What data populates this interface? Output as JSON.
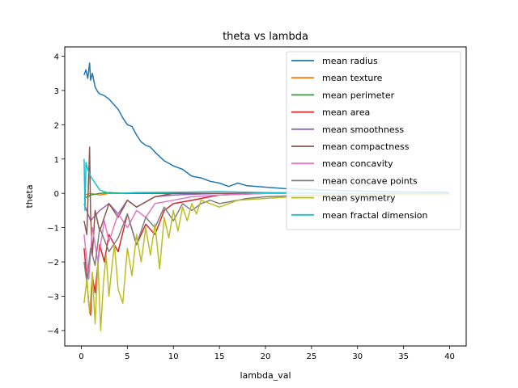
{
  "chart_data": {
    "type": "line",
    "title": "theta vs lambda",
    "xlabel": "lambda_val",
    "ylabel": "theta",
    "xlim": [
      -1.8,
      41.8
    ],
    "ylim": [
      -4.45,
      4.27
    ],
    "xticks": [
      0,
      5,
      10,
      15,
      20,
      25,
      30,
      35,
      40
    ],
    "yticks": [
      -4,
      -3,
      -2,
      -1,
      0,
      1,
      2,
      3,
      4
    ],
    "grid": false,
    "legend_position": "upper right",
    "series": [
      {
        "name": "mean radius",
        "color": "#1f77b4",
        "x": [
          0.3,
          0.5,
          0.7,
          0.9,
          1.0,
          1.2,
          1.5,
          1.8,
          2.0,
          2.5,
          3.0,
          3.5,
          4.0,
          4.5,
          5.0,
          5.5,
          6.0,
          6.5,
          7.0,
          7.5,
          8.0,
          9.0,
          10.0,
          11.0,
          12.0,
          13.0,
          14.0,
          15.0,
          16.0,
          17.0,
          18.0,
          20.0,
          22.0,
          24.0,
          26.0,
          28.0,
          30.0,
          33.0,
          36.0,
          40.0
        ],
        "y": [
          3.45,
          3.6,
          3.35,
          3.8,
          3.3,
          3.5,
          3.1,
          2.95,
          2.9,
          2.85,
          2.75,
          2.6,
          2.45,
          2.2,
          2.0,
          1.95,
          1.7,
          1.5,
          1.4,
          1.35,
          1.2,
          0.95,
          0.8,
          0.7,
          0.5,
          0.45,
          0.35,
          0.3,
          0.2,
          0.3,
          0.22,
          0.18,
          0.14,
          0.12,
          0.1,
          0.08,
          0.07,
          0.05,
          0.04,
          0.03
        ]
      },
      {
        "name": "mean texture",
        "color": "#ff7f0e",
        "x": [
          0.3,
          1.0,
          2.0,
          3.0,
          5.0,
          8.0,
          12.0,
          20.0,
          40.0
        ],
        "y": [
          -0.05,
          0.0,
          -0.05,
          0.0,
          0.0,
          0.0,
          0.0,
          0.0,
          0.0
        ]
      },
      {
        "name": "mean perimeter",
        "color": "#2ca02c",
        "x": [
          0.3,
          1.0,
          2.0,
          3.0,
          5.0,
          8.0,
          12.0,
          20.0,
          40.0
        ],
        "y": [
          -0.15,
          -0.05,
          0.0,
          0.02,
          0.0,
          0.0,
          0.0,
          0.0,
          0.0
        ]
      },
      {
        "name": "mean area",
        "color": "#d62728",
        "x": [
          0.3,
          0.5,
          0.8,
          1.0,
          1.2,
          1.5,
          2.0,
          2.5,
          3.0,
          4.0,
          5.0,
          6.0,
          7.0,
          8.0,
          9.0,
          10.0,
          12.0,
          15.0,
          20.0,
          25.0,
          30.0,
          40.0
        ],
        "y": [
          -1.6,
          -2.2,
          -3.2,
          -3.55,
          -2.4,
          -2.9,
          -1.5,
          -2.0,
          -1.2,
          -1.7,
          -0.6,
          -1.5,
          -0.9,
          -1.2,
          -0.5,
          -0.3,
          -0.2,
          -0.05,
          0.0,
          0.0,
          0.0,
          0.0
        ]
      },
      {
        "name": "mean smoothness",
        "color": "#9467bd",
        "x": [
          0.3,
          1.0,
          2.0,
          3.0,
          4.0,
          5.0,
          6.0,
          8.0,
          10.0,
          15.0,
          20.0,
          40.0
        ],
        "y": [
          -0.3,
          -0.8,
          -0.5,
          -0.3,
          -0.6,
          -0.2,
          -0.4,
          -0.1,
          -0.05,
          0.0,
          0.0,
          0.0
        ]
      },
      {
        "name": "mean compactness",
        "color": "#8c564b",
        "x": [
          0.3,
          0.6,
          0.9,
          1.0,
          1.2,
          1.5,
          2.0,
          3.0,
          4.0,
          5.0,
          6.0,
          8.0,
          10.0,
          15.0,
          20.0,
          40.0
        ],
        "y": [
          -0.8,
          -1.2,
          1.35,
          -0.6,
          -1.8,
          -0.5,
          -1.1,
          -0.3,
          -0.7,
          -0.2,
          -0.4,
          -0.1,
          0.0,
          0.0,
          0.0,
          0.0
        ]
      },
      {
        "name": "mean concavity",
        "color": "#e377c2",
        "x": [
          0.3,
          0.8,
          1.2,
          1.8,
          2.5,
          3.0,
          4.0,
          5.0,
          6.0,
          7.0,
          8.0,
          10.0,
          12.0,
          15.0,
          20.0,
          30.0,
          40.0
        ],
        "y": [
          -1.2,
          -2.5,
          -1.0,
          -2.0,
          -0.8,
          -1.4,
          -0.6,
          -1.0,
          -0.5,
          -0.7,
          -0.3,
          -0.2,
          -0.1,
          -0.05,
          0.0,
          0.0,
          0.0
        ]
      },
      {
        "name": "mean concave points",
        "color": "#7f7f7f",
        "x": [
          0.3,
          0.6,
          1.0,
          1.5,
          2.0,
          3.0,
          4.0,
          5.0,
          6.0,
          7.0,
          8.0,
          9.0,
          10.0,
          11.0,
          12.0,
          13.0,
          14.0,
          15.0,
          18.0,
          20.0,
          25.0,
          30.0,
          35.0,
          40.0
        ],
        "y": [
          -2.0,
          -2.6,
          -1.6,
          -2.1,
          -1.0,
          -1.7,
          -1.3,
          -0.6,
          -1.5,
          -0.7,
          -1.0,
          -0.4,
          -0.8,
          -0.3,
          -0.5,
          -0.3,
          -0.2,
          -0.3,
          -0.15,
          -0.1,
          -0.05,
          -0.05,
          0.0,
          -0.02
        ]
      },
      {
        "name": "mean symmetry",
        "color": "#bcbd22",
        "x": [
          0.3,
          0.6,
          0.9,
          1.2,
          1.5,
          1.8,
          2.1,
          2.4,
          2.7,
          3.0,
          3.3,
          3.6,
          4.0,
          4.5,
          5.0,
          5.5,
          6.0,
          6.5,
          7.0,
          7.5,
          8.0,
          8.5,
          9.0,
          9.5,
          10.0,
          10.5,
          11.0,
          11.5,
          12.0,
          12.5,
          13.0,
          14.0,
          15.0,
          17.0,
          20.0,
          23.0,
          26.0,
          30.0,
          35.0,
          40.0
        ],
        "y": [
          -3.2,
          -2.5,
          -3.5,
          -2.3,
          -3.8,
          -2.0,
          -4.0,
          -2.6,
          -1.8,
          -3.0,
          -2.2,
          -1.5,
          -2.8,
          -3.2,
          -1.6,
          -2.4,
          -1.2,
          -2.0,
          -1.0,
          -1.8,
          -0.9,
          -2.2,
          -0.7,
          -1.3,
          -0.5,
          -1.1,
          -0.4,
          -0.8,
          -0.3,
          -0.6,
          -0.2,
          -0.3,
          -0.4,
          -0.2,
          -0.15,
          -0.1,
          -0.08,
          -0.05,
          -0.03,
          -0.02
        ]
      },
      {
        "name": "mean fractal dimension",
        "color": "#17becf",
        "x": [
          0.3,
          0.4,
          0.5,
          0.7,
          1.0,
          1.5,
          2.0,
          2.5,
          3.0,
          4.0,
          6.0,
          10.0,
          15.0,
          20.0,
          25.0,
          30.0,
          35.0,
          40.0
        ],
        "y": [
          1.0,
          -0.5,
          0.9,
          0.7,
          0.5,
          0.3,
          0.1,
          0.05,
          0.0,
          0.0,
          0.02,
          0.03,
          0.05,
          0.02,
          0.01,
          0.0,
          0.0,
          0.0
        ]
      }
    ]
  }
}
